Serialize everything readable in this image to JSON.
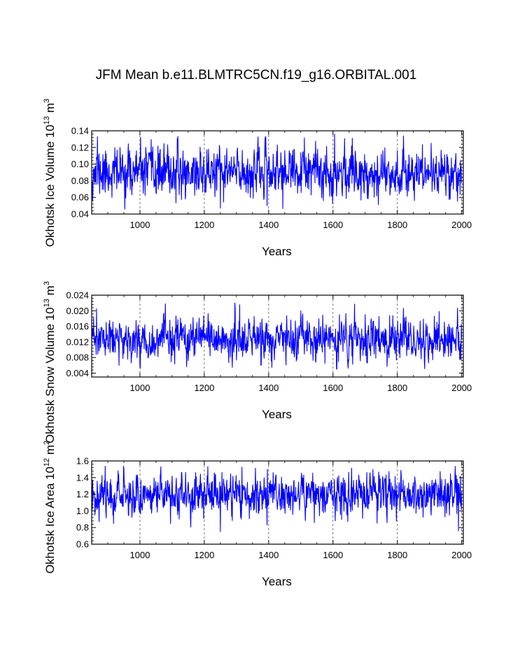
{
  "title": "JFM Mean b.e11.BLMTRC5CN.f19_g16.ORBITAL.001",
  "series_color": "#0000ff",
  "chart_data": [
    {
      "type": "line",
      "name": "ice-volume",
      "ylabel_main": "Okhotsk Ice Volume 10",
      "ylabel_exp": "13",
      "ylabel_unit": "m",
      "ylabel_unit_exp": "3",
      "xlabel": "Years",
      "xlim": [
        850,
        2005
      ],
      "ylim": [
        0.04,
        0.14
      ],
      "x_ticks": [
        1000,
        1200,
        1400,
        1600,
        1800,
        2000
      ],
      "x_tick_labels": [
        "1000",
        "1200",
        "1400",
        "1600",
        "1800",
        "2000"
      ],
      "y_ticks": [
        0.04,
        0.06,
        0.08,
        0.1,
        0.12,
        0.14
      ],
      "y_tick_labels": [
        "0.04",
        "0.06",
        "0.08",
        "0.10",
        "0.12",
        "0.14"
      ],
      "grid_x": true,
      "mean": 0.09,
      "std": 0.014,
      "seed": 11,
      "spikes": [
        [
          868,
          0.133
        ],
        [
          1605,
          0.136
        ],
        [
          1250,
          0.047
        ],
        [
          1660,
          0.131
        ],
        [
          1905,
          0.125
        ],
        [
          1395,
          0.05
        ]
      ]
    },
    {
      "type": "line",
      "name": "snow-volume",
      "ylabel_main": "Okhotsk Snow Volume 10",
      "ylabel_exp": "13",
      "ylabel_unit": "m",
      "ylabel_unit_exp": "3",
      "xlabel": "Years",
      "xlim": [
        850,
        2005
      ],
      "ylim": [
        0.003,
        0.024
      ],
      "x_ticks": [
        1000,
        1200,
        1400,
        1600,
        1800,
        2000
      ],
      "x_tick_labels": [
        "1000",
        "1200",
        "1400",
        "1600",
        "1800",
        "2000"
      ],
      "y_ticks": [
        0.004,
        0.008,
        0.012,
        0.016,
        0.02,
        0.024
      ],
      "y_tick_labels": [
        "0.004",
        "0.008",
        "0.012",
        "0.016",
        "0.020",
        "0.024"
      ],
      "grid_x": true,
      "mean": 0.0125,
      "std": 0.0025,
      "seed": 23,
      "spikes": [
        [
          1295,
          0.022
        ],
        [
          865,
          0.0205
        ],
        [
          935,
          0.006
        ],
        [
          1575,
          0.0065
        ],
        [
          1700,
          0.019
        ]
      ]
    },
    {
      "type": "line",
      "name": "ice-area",
      "ylabel_main": "Okhotsk Ice Area 10",
      "ylabel_exp": "12",
      "ylabel_unit": "m",
      "ylabel_unit_exp": "2",
      "xlabel": "Years",
      "xlim": [
        850,
        2005
      ],
      "ylim": [
        0.6,
        1.6
      ],
      "x_ticks": [
        1000,
        1200,
        1400,
        1600,
        1800,
        2000
      ],
      "x_tick_labels": [
        "1000",
        "1200",
        "1400",
        "1600",
        "1800",
        "2000"
      ],
      "y_ticks": [
        0.6,
        0.8,
        1.0,
        1.2,
        1.4,
        1.6
      ],
      "y_tick_labels": [
        "0.6",
        "0.8",
        "1.0",
        "1.2",
        "1.4",
        "1.6"
      ],
      "grid_x": true,
      "mean": 1.2,
      "std": 0.12,
      "seed": 37,
      "spikes": [
        [
          1250,
          0.75
        ],
        [
          1990,
          0.76
        ],
        [
          1395,
          0.83
        ],
        [
          1680,
          1.43
        ]
      ]
    }
  ]
}
